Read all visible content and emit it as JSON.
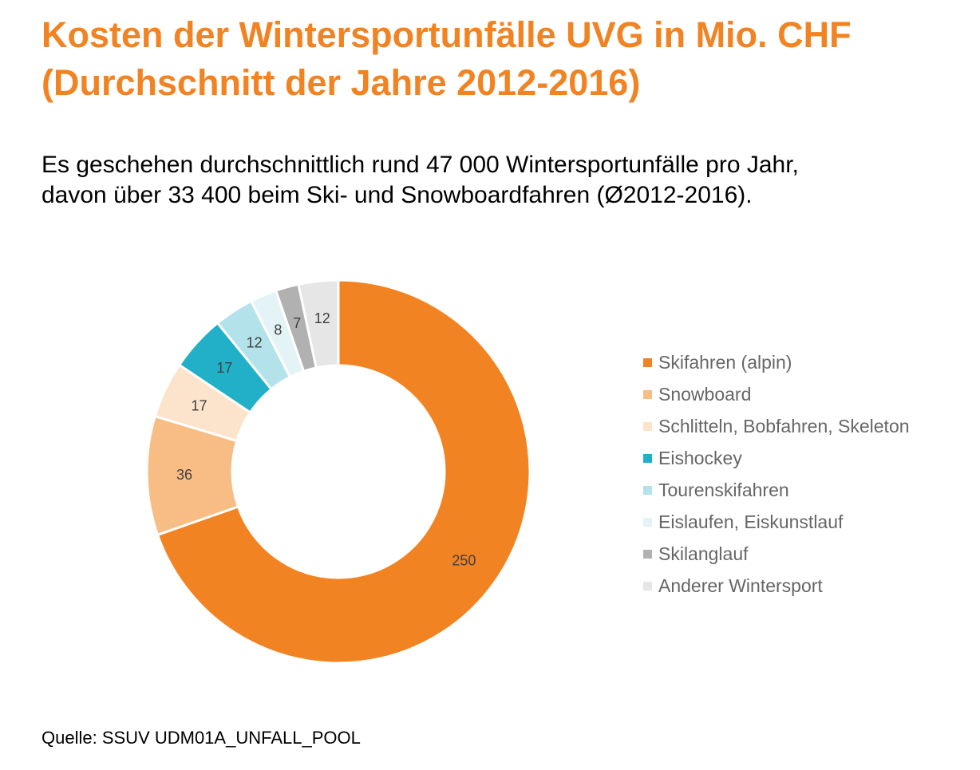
{
  "title_lines": [
    "Kosten der Wintersportunfälle UVG in Mio. CHF",
    "(Durchschnitt der Jahre 2012-2016)"
  ],
  "subtitle_lines": [
    "Es geschehen durchschnittlich rund 47 000 Wintersportunfälle pro Jahr,",
    "davon über 33 400 beim Ski- und Snowboardfahren (Ø2012-2016)."
  ],
  "source": "Quelle: SSUV UDM01A_UNFALL_POOL",
  "colors": {
    "title": "#f28322",
    "slice_border": "#ffffff",
    "label_text": "#404040",
    "legend_text": "#666666"
  },
  "chart_data": {
    "type": "pie",
    "variant": "donut",
    "legend_position": "right",
    "slices": [
      {
        "name": "Skifahren (alpin)",
        "value": 250,
        "label": "250",
        "color": "#f28322"
      },
      {
        "name": "Snowboard",
        "value": 36,
        "label": "36",
        "color": "#f7bd84"
      },
      {
        "name": "Schlitteln, Bobfahren, Skeleton",
        "value": 17,
        "label": "17",
        "color": "#fce3cc"
      },
      {
        "name": "Eishockey",
        "value": 17,
        "label": "17",
        "color": "#21b0c8"
      },
      {
        "name": "Tourenskifahren",
        "value": 12,
        "label": "12",
        "color": "#b3e2ea"
      },
      {
        "name": "Eislaufen, Eiskunstlauf",
        "value": 8,
        "label": "8",
        "color": "#e3f3f6"
      },
      {
        "name": "Skilanglauf",
        "value": 7,
        "label": "7",
        "color": "#b1b1b1"
      },
      {
        "name": "Anderer Wintersport",
        "value": 12,
        "label": "12",
        "color": "#e6e6e6"
      }
    ]
  }
}
